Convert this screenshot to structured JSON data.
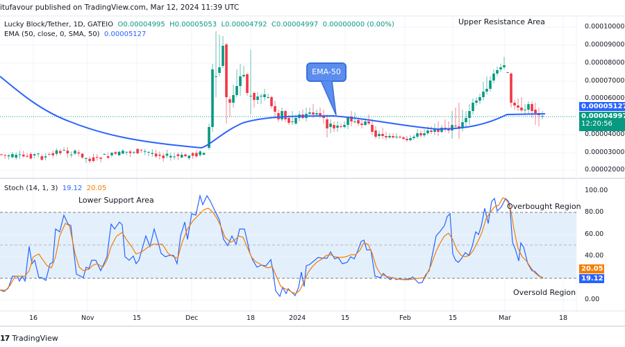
{
  "header": {
    "published": "itufavour published on TradingView.com, Mar 12, 2024 11:39 UTC"
  },
  "main_pane": {
    "symbol": "Lucky Block/Tether, 1D, GATEIO",
    "ohlc": {
      "open": "O0.00004995",
      "high": "H0.00005053",
      "low": "L0.00004792",
      "close": "C0.00004997",
      "change": "0.00000000 (0.00%)"
    },
    "ema_label": "EMA (50, close, 0, SMA, 50)",
    "ema_value": "0.00005127",
    "annotation_upper": "Upper Resistance Area",
    "callout": "EMA-50",
    "price_badge_ema": "0.00005127",
    "price_badge_last": "0.00004997",
    "countdown": "12:20:56",
    "price_axis": [
      "0.00010000",
      "0.00009000",
      "0.00008000",
      "0.00007000",
      "0.00006000",
      "0.00004000",
      "0.00003000",
      "0.00002000"
    ]
  },
  "stoch_pane": {
    "label": "Stoch (14, 1, 3)",
    "k_value": "19.12",
    "d_value": "20.05",
    "annotation_lower_support": "Lower Support Area",
    "annotation_overbought": "Overbought Region",
    "annotation_oversold": "Oversold Region",
    "axis": [
      "100.00",
      "80.00",
      "60.00",
      "40.00",
      "0.00"
    ],
    "badge_d": "20.05",
    "badge_k": "19.12"
  },
  "time_axis": [
    "16",
    "Nov",
    "15",
    "Dec",
    "18",
    "2024",
    "15",
    "Feb",
    "15",
    "Mar",
    "18"
  ],
  "footer": {
    "logo": "17",
    "brand": "TradingView"
  },
  "colors": {
    "up": "#089981",
    "down": "#f23645",
    "ema": "#2962ff",
    "stoch_k": "#2962ff",
    "stoch_d": "#f57c00",
    "band_fill": "#e3f0fc"
  },
  "chart_data": [
    {
      "type": "candlestick",
      "title": "Lucky Block/Tether, 1D, GATEIO",
      "x_range": [
        "Oct 2023",
        "Mar 12 2024"
      ],
      "ylim": [
        1.5e-05,
        0.000103
      ],
      "y_ticks": [
        2e-05,
        3e-05,
        4e-05,
        6e-05,
        7e-05,
        8e-05,
        9e-05,
        0.0001
      ],
      "series": [
        {
          "name": "EMA 50",
          "type": "line",
          "approx_points": [
            {
              "x": "Oct 8",
              "y": 7.3e-05
            },
            {
              "x": "Oct 25",
              "y": 5.7e-05
            },
            {
              "x": "Nov 15",
              "y": 4.5e-05
            },
            {
              "x": "Dec 5",
              "y": 3.8e-05
            },
            {
              "x": "Dec 18",
              "y": 4.6e-05
            },
            {
              "x": "Jan 1",
              "y": 5e-05
            },
            {
              "x": "Jan 15",
              "y": 4.9e-05
            },
            {
              "x": "Feb 1",
              "y": 4.6e-05
            },
            {
              "x": "Feb 15",
              "y": 4.3e-05
            },
            {
              "x": "Mar 1",
              "y": 5e-05
            },
            {
              "x": "Mar 12",
              "y": 5.127e-05
            }
          ]
        },
        {
          "name": "Price (close, approx)",
          "type": "candles",
          "approx_points": [
            {
              "x": "Oct 10",
              "y": 3e-05
            },
            {
              "x": "Nov 1",
              "y": 2.9e-05
            },
            {
              "x": "Dec 1",
              "y": 3e-05
            },
            {
              "x": "Dec 6",
              "y": 8e-05
            },
            {
              "x": "Dec 10",
              "y": 9.4e-05
            },
            {
              "x": "Dec 12",
              "y": 6e-05
            },
            {
              "x": "Dec 20",
              "y": 5.7e-05
            },
            {
              "x": "Jan 1",
              "y": 5e-05
            },
            {
              "x": "Jan 12",
              "y": 4.8e-05
            },
            {
              "x": "Feb 1",
              "y": 4.1e-05
            },
            {
              "x": "Feb 15",
              "y": 4.3e-05
            },
            {
              "x": "Feb 25",
              "y": 6.3e-05
            },
            {
              "x": "Mar 2",
              "y": 7.1e-05
            },
            {
              "x": "Mar 4",
              "y": 5.2e-05
            },
            {
              "x": "Mar 12",
              "y": 4.997e-05
            }
          ]
        }
      ],
      "annotations": [
        "Upper Resistance Area",
        "EMA-50"
      ]
    },
    {
      "type": "line",
      "title": "Stoch (14, 1, 3)",
      "ylim": [
        0,
        100
      ],
      "y_ticks": [
        0,
        40,
        60,
        80,
        100
      ],
      "bands": {
        "upper": 80,
        "middle": 50,
        "lower": 20
      },
      "series": [
        {
          "name": "%K",
          "color": "#2962ff",
          "last": 19.12
        },
        {
          "name": "%D",
          "color": "#f57c00",
          "last": 20.05
        }
      ],
      "annotations": [
        "Lower Support Area",
        "Overbought Region",
        "Oversold Region"
      ]
    }
  ]
}
